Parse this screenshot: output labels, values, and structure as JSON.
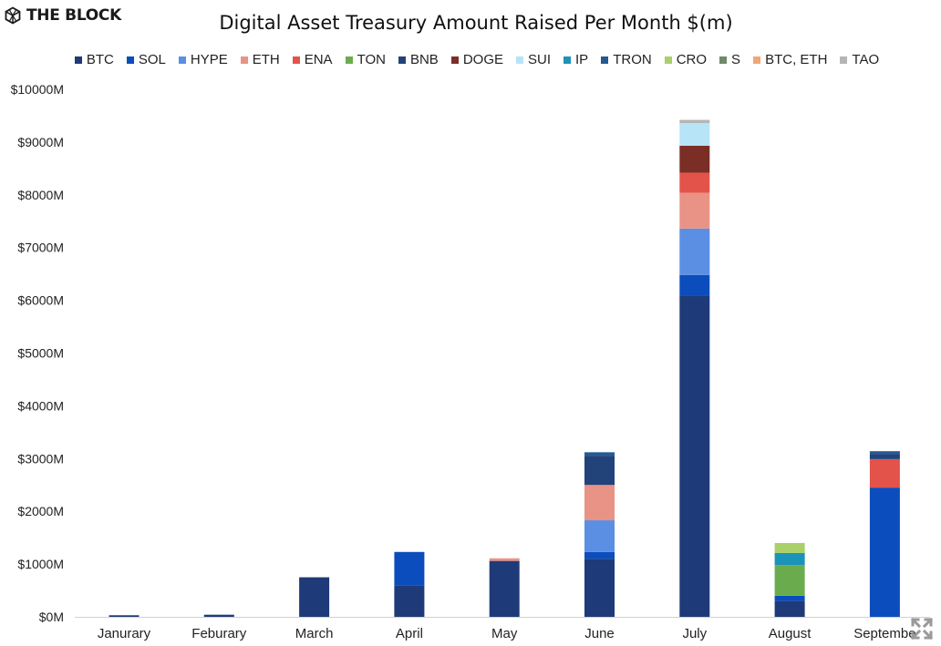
{
  "brand": {
    "name": "THE BLOCK",
    "logo_icon": "the-block-cube-icon"
  },
  "chart_data": {
    "type": "bar",
    "stacked": true,
    "title": "Digital Asset Treasury Amount Raised Per Month $(m)",
    "xlabel": "",
    "ylabel": "",
    "ylim": [
      0,
      10000
    ],
    "yticks": [
      0,
      1000,
      2000,
      3000,
      4000,
      5000,
      6000,
      7000,
      8000,
      9000,
      10000
    ],
    "ytick_prefix": "$",
    "ytick_suffix": "M",
    "grid": false,
    "legend_position": "top",
    "categories": [
      "Janurary",
      "Feburary",
      "March",
      "April",
      "May",
      "June",
      "July",
      "August",
      "Septembe"
    ],
    "series": [
      {
        "name": "BTC",
        "color": "#1f3a78",
        "values": [
          30,
          40,
          750,
          600,
          1060,
          1100,
          6080,
          300,
          0
        ]
      },
      {
        "name": "SOL",
        "color": "#0b4dbd",
        "values": [
          0,
          0,
          0,
          630,
          0,
          130,
          400,
          100,
          2450
        ]
      },
      {
        "name": "HYPE",
        "color": "#5a8fe4",
        "values": [
          0,
          0,
          0,
          0,
          0,
          600,
          880,
          0,
          0
        ]
      },
      {
        "name": "ETH",
        "color": "#e89386",
        "values": [
          0,
          0,
          0,
          0,
          50,
          670,
          680,
          0,
          0
        ]
      },
      {
        "name": "ENA",
        "color": "#e3534a",
        "values": [
          0,
          0,
          0,
          0,
          0,
          0,
          380,
          0,
          540
        ]
      },
      {
        "name": "TON",
        "color": "#6aac4d",
        "values": [
          0,
          0,
          0,
          0,
          0,
          0,
          0,
          580,
          0
        ]
      },
      {
        "name": "BNB",
        "color": "#22427a",
        "values": [
          0,
          0,
          0,
          0,
          0,
          550,
          0,
          0,
          100
        ]
      },
      {
        "name": "DOGE",
        "color": "#7b2e26",
        "values": [
          0,
          0,
          0,
          0,
          0,
          0,
          510,
          0,
          0
        ]
      },
      {
        "name": "SUI",
        "color": "#b7e4f7",
        "values": [
          0,
          0,
          0,
          0,
          0,
          0,
          430,
          0,
          0
        ]
      },
      {
        "name": "IP",
        "color": "#1c93b8",
        "values": [
          0,
          0,
          0,
          0,
          0,
          0,
          0,
          230,
          0
        ]
      },
      {
        "name": "TRON",
        "color": "#235a91",
        "values": [
          0,
          0,
          0,
          0,
          0,
          70,
          0,
          0,
          50
        ]
      },
      {
        "name": "CRO",
        "color": "#a9d06a",
        "values": [
          0,
          0,
          0,
          0,
          0,
          0,
          0,
          190,
          0
        ]
      },
      {
        "name": "S",
        "color": "#6f8a68",
        "values": [
          0,
          0,
          0,
          0,
          0,
          0,
          0,
          0,
          0
        ]
      },
      {
        "name": "BTC, ETH",
        "color": "#f0a67a",
        "values": [
          0,
          0,
          0,
          0,
          0,
          0,
          0,
          0,
          0
        ]
      },
      {
        "name": "TAO",
        "color": "#b5b5b5",
        "values": [
          0,
          0,
          0,
          0,
          0,
          0,
          60,
          0,
          0
        ]
      }
    ]
  },
  "controls": {
    "expand_icon": "expand-arrows-icon"
  }
}
